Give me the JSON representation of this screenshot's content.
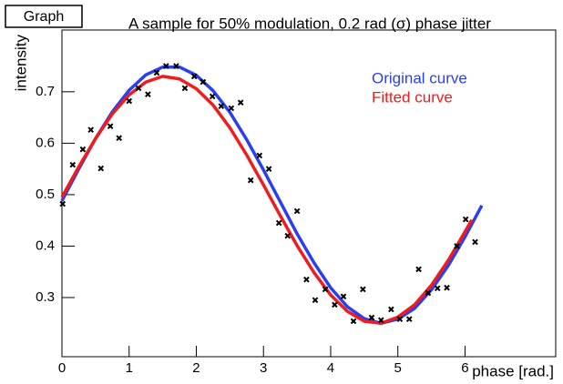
{
  "chart_data": {
    "type": "scatter",
    "label": "Graph",
    "title": "A sample for 50% modulation, 0.2 rad (σ) phase jitter",
    "xlabel": "phase [rad.]",
    "ylabel": "intensity",
    "xlim": [
      0,
      7.35
    ],
    "ylim": [
      0.185,
      0.82
    ],
    "xticks": [
      0,
      1,
      2,
      3,
      4,
      5,
      6
    ],
    "yticks": [
      0.3,
      0.4,
      0.5,
      0.6,
      0.7
    ],
    "legend": "upper right",
    "color": "#000000",
    "x": [
      0.01,
      0.16,
      0.31,
      0.43,
      0.58,
      0.72,
      0.85,
      1.0,
      1.14,
      1.28,
      1.41,
      1.55,
      1.7,
      1.83,
      1.97,
      2.1,
      2.24,
      2.37,
      2.52,
      2.66,
      2.81,
      2.94,
      3.08,
      3.23,
      3.36,
      3.5,
      3.64,
      3.77,
      3.92,
      4.06,
      4.19,
      4.34,
      4.48,
      4.61,
      4.75,
      4.9,
      5.03,
      5.17,
      5.31,
      5.45,
      5.59,
      5.73,
      5.88,
      6.01,
      6.15
    ],
    "values": [
      0.482,
      0.558,
      0.588,
      0.626,
      0.551,
      0.633,
      0.61,
      0.682,
      0.707,
      0.695,
      0.737,
      0.75,
      0.75,
      0.707,
      0.73,
      0.719,
      0.691,
      0.672,
      0.668,
      0.679,
      0.528,
      0.576,
      0.55,
      0.445,
      0.42,
      0.468,
      0.335,
      0.295,
      0.316,
      0.286,
      0.302,
      0.254,
      0.316,
      0.261,
      0.256,
      0.277,
      0.258,
      0.258,
      0.355,
      0.309,
      0.318,
      0.319,
      0.4,
      0.452,
      0.408
    ],
    "series": [
      {
        "name": "Original curve",
        "color": "#2b3ff0",
        "x": [
          0,
          0.25,
          0.5,
          0.75,
          1,
          1.25,
          1.5,
          1.75,
          2,
          2.25,
          2.5,
          2.75,
          3,
          3.25,
          3.5,
          3.75,
          4,
          4.25,
          4.5,
          4.75,
          5,
          5.25,
          5.5,
          5.75,
          6,
          6.25
        ],
        "values": [
          0.488,
          0.55,
          0.609,
          0.661,
          0.703,
          0.733,
          0.748,
          0.748,
          0.732,
          0.702,
          0.66,
          0.607,
          0.548,
          0.486,
          0.424,
          0.368,
          0.319,
          0.282,
          0.259,
          0.25,
          0.258,
          0.279,
          0.315,
          0.362,
          0.418,
          0.479
        ]
      },
      {
        "name": "Fitted curve",
        "color": "#ee1c1c",
        "x": [
          0,
          0.25,
          0.5,
          0.75,
          1,
          1.25,
          1.5,
          1.75,
          2,
          2.25,
          2.5,
          2.75,
          3,
          3.25,
          3.5,
          3.75,
          4,
          4.25,
          4.5,
          4.75,
          5,
          5.25,
          5.5,
          5.75,
          6,
          6.1
        ],
        "values": [
          0.495,
          0.554,
          0.609,
          0.657,
          0.694,
          0.719,
          0.73,
          0.725,
          0.706,
          0.674,
          0.63,
          0.577,
          0.519,
          0.459,
          0.401,
          0.349,
          0.305,
          0.273,
          0.254,
          0.25,
          0.262,
          0.286,
          0.324,
          0.372,
          0.428,
          0.451
        ]
      }
    ]
  }
}
